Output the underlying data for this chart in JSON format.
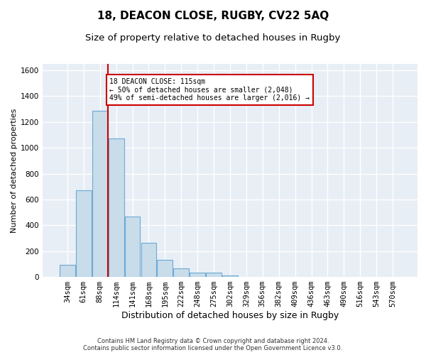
{
  "title": "18, DEACON CLOSE, RUGBY, CV22 5AQ",
  "subtitle": "Size of property relative to detached houses in Rugby",
  "xlabel": "Distribution of detached houses by size in Rugby",
  "ylabel": "Number of detached properties",
  "footer_line1": "Contains HM Land Registry data © Crown copyright and database right 2024.",
  "footer_line2": "Contains public sector information licensed under the Open Government Licence v3.0.",
  "bar_categories": [
    "34sqm",
    "61sqm",
    "88sqm",
    "114sqm",
    "141sqm",
    "168sqm",
    "195sqm",
    "222sqm",
    "248sqm",
    "275sqm",
    "302sqm",
    "329sqm",
    "356sqm",
    "382sqm",
    "409sqm",
    "436sqm",
    "463sqm",
    "490sqm",
    "516sqm",
    "543sqm",
    "570sqm"
  ],
  "bar_values": [
    95,
    670,
    1285,
    1070,
    470,
    265,
    130,
    65,
    35,
    35,
    10,
    0,
    0,
    0,
    0,
    0,
    0,
    0,
    0,
    0,
    0
  ],
  "bar_color": "#c9dcea",
  "bar_edgecolor": "#6aaad4",
  "vline_color": "#cc0000",
  "annotation_text": "18 DEACON CLOSE: 115sqm\n← 50% of detached houses are smaller (2,048)\n49% of semi-detached houses are larger (2,016) →",
  "annotation_box_color": "#cc0000",
  "ylim": [
    0,
    1650
  ],
  "yticks": [
    0,
    200,
    400,
    600,
    800,
    1000,
    1200,
    1400,
    1600
  ],
  "background_color": "#e8eef5",
  "grid_color": "#ffffff",
  "title_fontsize": 11,
  "subtitle_fontsize": 9.5,
  "xlabel_fontsize": 9,
  "ylabel_fontsize": 8,
  "tick_fontsize": 7.5,
  "footer_fontsize": 6
}
